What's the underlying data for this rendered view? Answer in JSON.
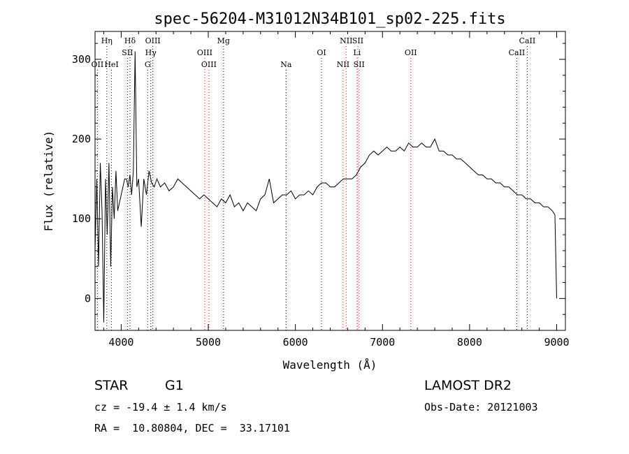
{
  "chart_data": {
    "type": "line",
    "title": "spec-56204-M31012N34B101_sp02-225.fits",
    "xlabel": "Wavelength (Å)",
    "ylabel": "Flux (relative)",
    "xlim": [
      3700,
      9100
    ],
    "ylim": [
      -40,
      335
    ],
    "xticks": [
      4000,
      5000,
      6000,
      7000,
      8000,
      9000
    ],
    "yticks": [
      0,
      100,
      200,
      300
    ],
    "grid": false,
    "line_color": "#000000",
    "marker_line_color": "#ff0000",
    "series": [
      {
        "x": [
          3700,
          3720,
          3740,
          3760,
          3780,
          3800,
          3820,
          3840,
          3860,
          3880,
          3900,
          3920,
          3940,
          3960,
          3980,
          4000,
          4020,
          4040,
          4060,
          4080,
          4100,
          4120,
          4140,
          4160,
          4180,
          4200,
          4230,
          4260,
          4290,
          4320,
          4350,
          4380,
          4410,
          4450,
          4500,
          4550,
          4600,
          4650,
          4700,
          4750,
          4800,
          4850,
          4900,
          4950,
          5000,
          5050,
          5100,
          5150,
          5200,
          5250,
          5300,
          5350,
          5400,
          5450,
          5500,
          5550,
          5600,
          5650,
          5700,
          5750,
          5800,
          5850,
          5900,
          5950,
          6000,
          6050,
          6100,
          6150,
          6200,
          6250,
          6300,
          6350,
          6400,
          6450,
          6500,
          6550,
          6600,
          6650,
          6700,
          6750,
          6800,
          6850,
          6900,
          6950,
          7000,
          7050,
          7100,
          7150,
          7200,
          7250,
          7300,
          7350,
          7400,
          7450,
          7500,
          7550,
          7600,
          7650,
          7700,
          7750,
          7800,
          7850,
          7900,
          7950,
          8000,
          8050,
          8100,
          8150,
          8200,
          8250,
          8300,
          8350,
          8400,
          8450,
          8500,
          8550,
          8600,
          8650,
          8700,
          8750,
          8800,
          8850,
          8900,
          8950,
          8980,
          9000
        ],
        "y": [
          60,
          150,
          40,
          170,
          110,
          -30,
          150,
          80,
          170,
          40,
          140,
          100,
          160,
          110,
          120,
          130,
          140,
          150,
          150,
          140,
          155,
          130,
          160,
          310,
          140,
          150,
          90,
          150,
          130,
          160,
          145,
          140,
          150,
          140,
          145,
          135,
          140,
          150,
          145,
          140,
          135,
          130,
          125,
          130,
          125,
          120,
          115,
          125,
          120,
          130,
          115,
          120,
          110,
          120,
          115,
          110,
          125,
          130,
          150,
          120,
          125,
          130,
          130,
          135,
          125,
          130,
          130,
          135,
          130,
          140,
          145,
          145,
          140,
          140,
          145,
          150,
          150,
          150,
          155,
          165,
          170,
          180,
          185,
          180,
          185,
          190,
          185,
          185,
          190,
          185,
          195,
          190,
          190,
          195,
          190,
          190,
          200,
          185,
          185,
          180,
          180,
          175,
          175,
          170,
          165,
          160,
          155,
          155,
          150,
          150,
          145,
          145,
          140,
          140,
          135,
          130,
          130,
          125,
          125,
          120,
          120,
          115,
          115,
          110,
          105,
          0
        ]
      }
    ],
    "lines": [
      {
        "wl": 3835,
        "label": "Hη",
        "row": 0,
        "color": "#000000"
      },
      {
        "wl": 4101,
        "label": "Hδ",
        "row": 0,
        "color": "#000000"
      },
      {
        "wl": 4363,
        "label": "OIII",
        "row": 0,
        "color": "#000000"
      },
      {
        "wl": 5175,
        "label": "Mg",
        "row": 0,
        "color": "#000000"
      },
      {
        "wl": 6583,
        "label": "NII",
        "row": 0,
        "color": "#ff0000"
      },
      {
        "wl": 6717,
        "label": "SII",
        "row": 0,
        "color": "#ff0000"
      },
      {
        "wl": 8662,
        "label": "CaII",
        "row": 0,
        "color": "#000000"
      },
      {
        "wl": 4072,
        "label": "SII",
        "row": 1,
        "color": "#000000"
      },
      {
        "wl": 4340,
        "label": "Hγ",
        "row": 1,
        "color": "#000000"
      },
      {
        "wl": 4959,
        "label": "OIII",
        "row": 1,
        "color": "#ff0000"
      },
      {
        "wl": 6300,
        "label": "OI",
        "row": 1,
        "color": "#000000"
      },
      {
        "wl": 6708,
        "label": "Li",
        "row": 1,
        "color": "#ff0000"
      },
      {
        "wl": 7325,
        "label": "OII",
        "row": 1,
        "color": "#ff0000"
      },
      {
        "wl": 8542,
        "label": "CaII",
        "row": 1,
        "color": "#000000"
      },
      {
        "wl": 3727,
        "label": "OII",
        "row": 2,
        "color": "#000000"
      },
      {
        "wl": 3889,
        "label": "HeI",
        "row": 2,
        "color": "#000000"
      },
      {
        "wl": 4304,
        "label": "G",
        "row": 2,
        "color": "#000000"
      },
      {
        "wl": 5007,
        "label": "OIII",
        "row": 2,
        "color": "#ff0000"
      },
      {
        "wl": 5893,
        "label": "Na",
        "row": 2,
        "color": "#000000"
      },
      {
        "wl": 6548,
        "label": "NII",
        "row": 2,
        "color": "#ff0000"
      },
      {
        "wl": 6731,
        "label": "SII",
        "row": 2,
        "color": "#ff0000"
      }
    ]
  },
  "info": {
    "object_class": "STAR",
    "subclass": "G1",
    "survey": "LAMOST DR2",
    "cz": "cz = -19.4 ± 1.4 km/s",
    "obs_date": "Obs-Date: 20121003",
    "coords": "RA =  10.80804, DEC =  33.17101"
  }
}
